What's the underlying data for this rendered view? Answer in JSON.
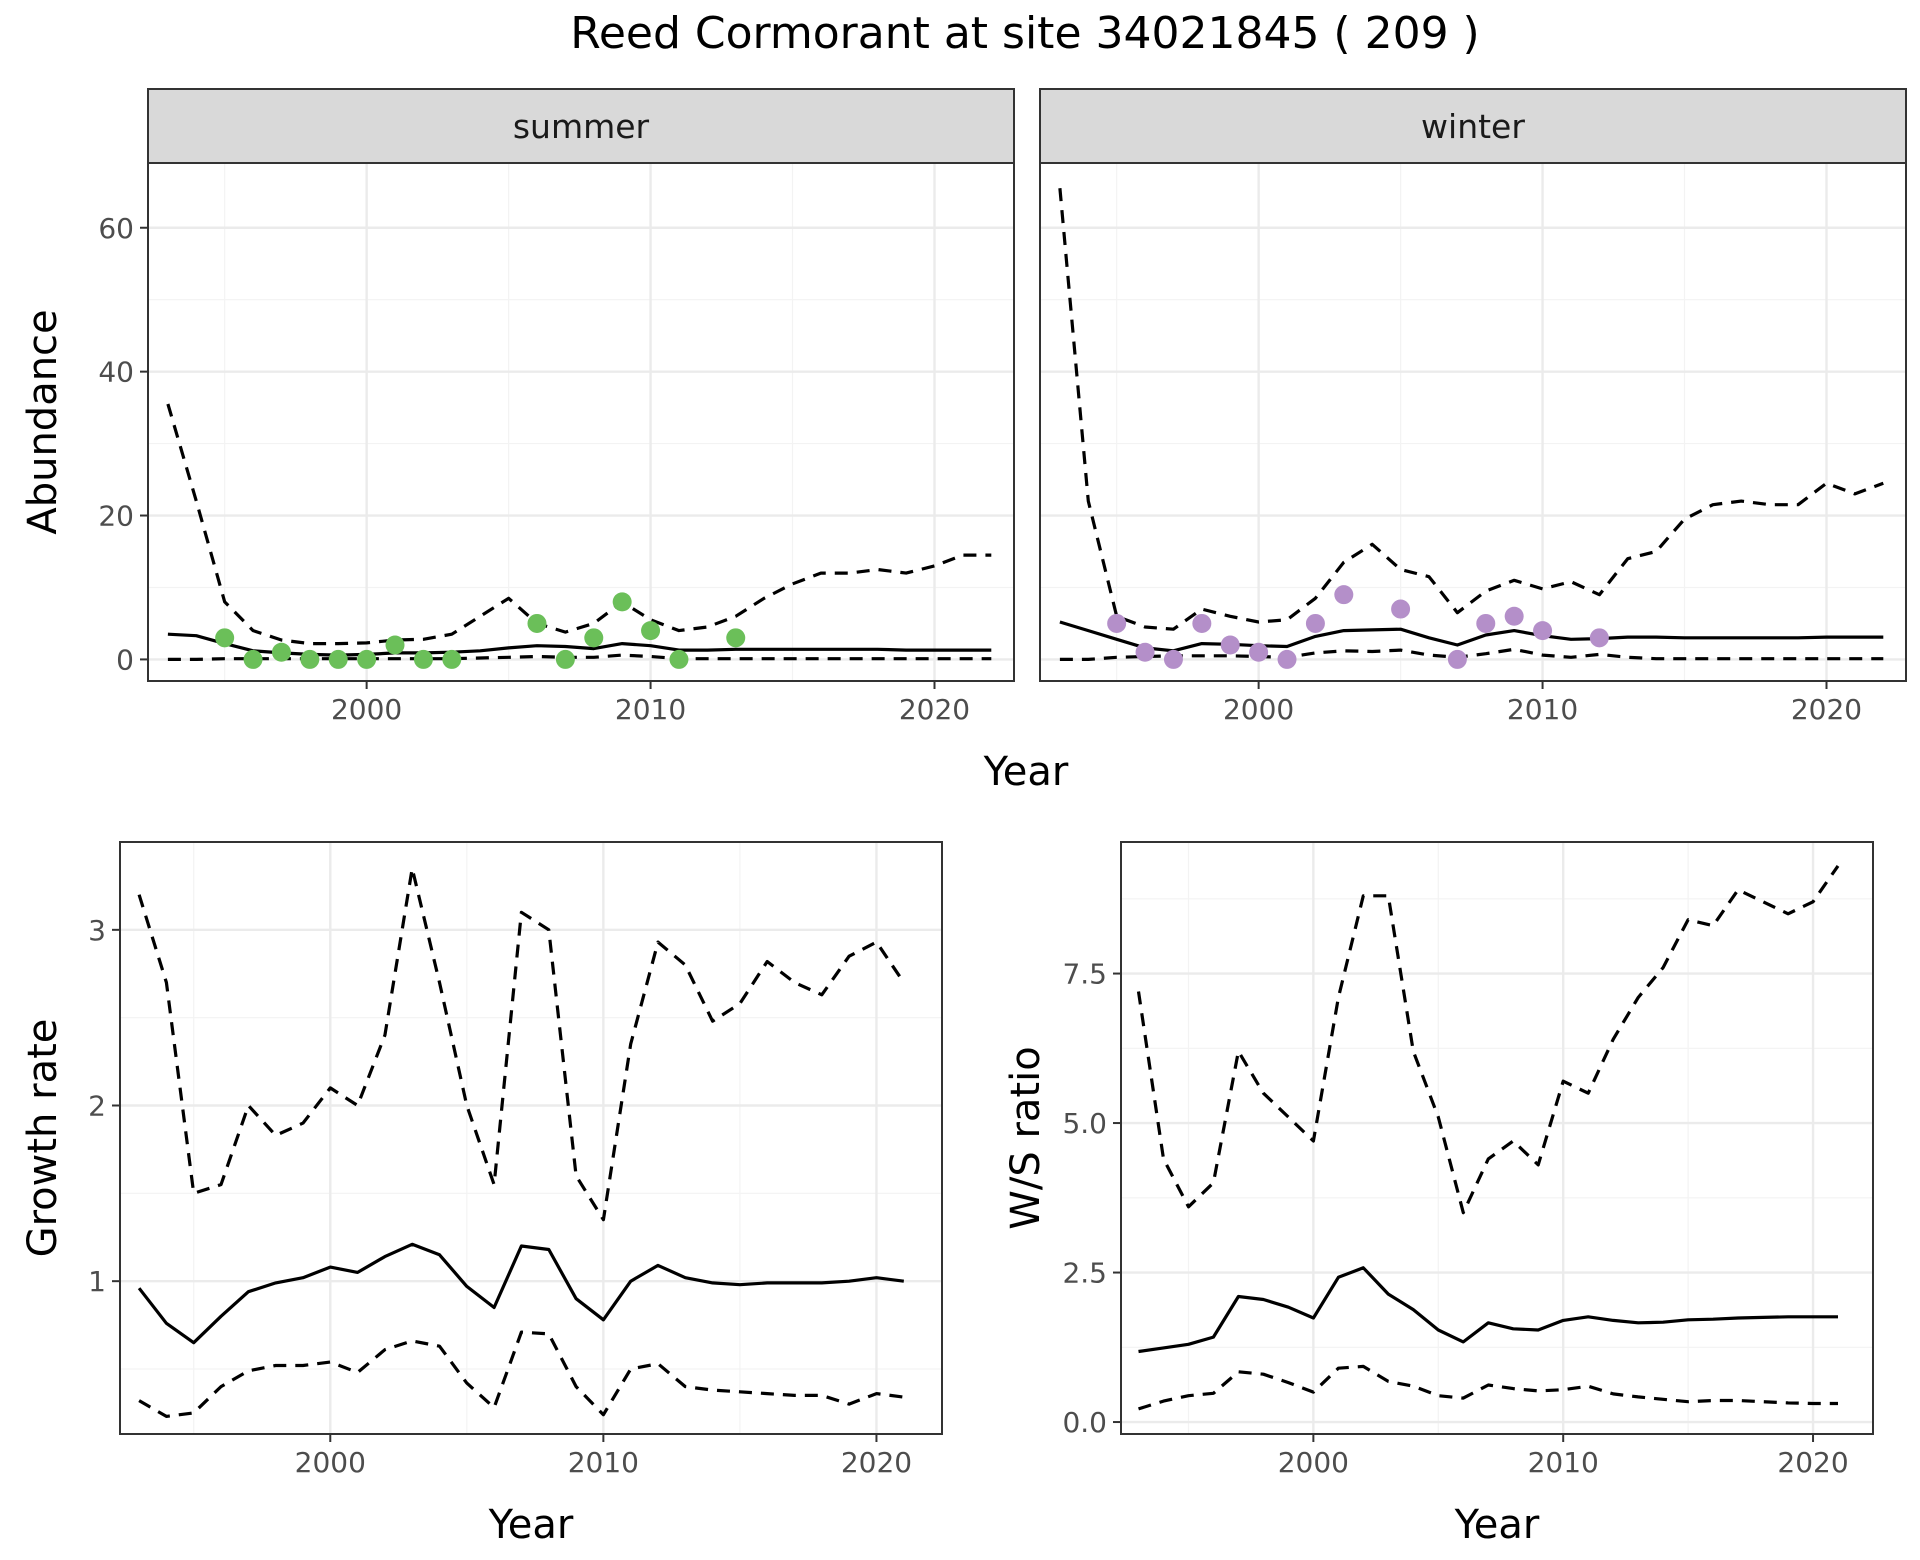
{
  "figure": {
    "title": "Reed Cormorant at site 34021845 ( 209 )"
  },
  "chart_data": [
    {
      "type": "line",
      "facet": "summer",
      "xlabel": "Year",
      "ylabel": "Abundance",
      "xlim": [
        1992.3,
        2022.8
      ],
      "ylim": [
        -3,
        69
      ],
      "x_ticks": [
        2000,
        2010,
        2020
      ],
      "y_ticks": [
        0,
        20,
        40,
        60
      ],
      "point_color": "#6bbf59",
      "x": [
        1993,
        1994,
        1995,
        1996,
        1997,
        1998,
        1999,
        2000,
        2001,
        2002,
        2003,
        2004,
        2005,
        2006,
        2007,
        2008,
        2009,
        2010,
        2011,
        2012,
        2013,
        2014,
        2015,
        2016,
        2017,
        2018,
        2019,
        2020,
        2021,
        2022
      ],
      "estimate": [
        3.5,
        3.3,
        2.2,
        1.2,
        0.9,
        0.7,
        0.6,
        0.7,
        0.9,
        0.9,
        1.0,
        1.2,
        1.6,
        1.9,
        1.8,
        1.5,
        2.2,
        1.9,
        1.3,
        1.3,
        1.4,
        1.4,
        1.4,
        1.4,
        1.4,
        1.4,
        1.3,
        1.3,
        1.3,
        1.3
      ],
      "upper": [
        35.5,
        22,
        8,
        4,
        2.7,
        2.2,
        2.2,
        2.3,
        2.7,
        2.8,
        3.5,
        6,
        8.5,
        5,
        3.8,
        5,
        8,
        5.5,
        4,
        4.5,
        6,
        8.5,
        10.5,
        12,
        12,
        12.5,
        12,
        13,
        14.5,
        14.5
      ],
      "lower": [
        0,
        0,
        0.1,
        0.1,
        0.1,
        0.1,
        0.1,
        0.1,
        0.1,
        0.1,
        0.1,
        0.2,
        0.3,
        0.4,
        0.3,
        0.3,
        0.6,
        0.4,
        0.1,
        0.1,
        0.1,
        0.1,
        0.1,
        0.1,
        0.1,
        0.1,
        0.1,
        0.1,
        0.1,
        0.1
      ],
      "counts": [
        {
          "x": 1995,
          "y": 3
        },
        {
          "x": 1996,
          "y": 0
        },
        {
          "x": 1997,
          "y": 1
        },
        {
          "x": 1998,
          "y": 0
        },
        {
          "x": 1999,
          "y": 0
        },
        {
          "x": 2000,
          "y": 0
        },
        {
          "x": 2001,
          "y": 2
        },
        {
          "x": 2002,
          "y": 0
        },
        {
          "x": 2003,
          "y": 0
        },
        {
          "x": 2006,
          "y": 5
        },
        {
          "x": 2007,
          "y": 0
        },
        {
          "x": 2008,
          "y": 3
        },
        {
          "x": 2009,
          "y": 8
        },
        {
          "x": 2010,
          "y": 4
        },
        {
          "x": 2011,
          "y": 0
        },
        {
          "x": 2013,
          "y": 3
        }
      ]
    },
    {
      "type": "line",
      "facet": "winter",
      "xlabel": "Year",
      "ylabel": "Abundance",
      "xlim": [
        1992.3,
        2022.8
      ],
      "ylim": [
        -3,
        69
      ],
      "x_ticks": [
        2000,
        2010,
        2020
      ],
      "y_ticks": [
        0,
        20,
        40,
        60
      ],
      "point_color": "#b48fc9",
      "x": [
        1993,
        1994,
        1995,
        1996,
        1997,
        1998,
        1999,
        2000,
        2001,
        2002,
        2003,
        2004,
        2005,
        2006,
        2007,
        2008,
        2009,
        2010,
        2011,
        2012,
        2013,
        2014,
        2015,
        2016,
        2017,
        2018,
        2019,
        2020,
        2021,
        2022
      ],
      "estimate": [
        5.2,
        4,
        2.8,
        1.6,
        1.2,
        2.2,
        2.1,
        1.9,
        1.8,
        3.2,
        4.0,
        4.1,
        4.2,
        3.0,
        2.0,
        3.4,
        4.0,
        3.3,
        2.8,
        2.9,
        3.1,
        3.1,
        3.0,
        3.0,
        3.0,
        3.0,
        3.0,
        3.1,
        3.1,
        3.1
      ],
      "upper": [
        65.5,
        22,
        6,
        4.5,
        4.2,
        7,
        6,
        5.2,
        5.5,
        8.5,
        13.5,
        16,
        12.5,
        11.5,
        6.5,
        9.5,
        11,
        9.8,
        10.8,
        9,
        14,
        15,
        19.5,
        21.5,
        22,
        21.5,
        21.5,
        24.5,
        23,
        24.5
      ],
      "lower": [
        0,
        0,
        0.3,
        0.4,
        0.5,
        0.5,
        0.5,
        0.4,
        0.3,
        0.9,
        1.2,
        1.1,
        1.3,
        0.6,
        0.3,
        0.8,
        1.4,
        0.6,
        0.3,
        0.7,
        0.3,
        0.1,
        0.1,
        0.1,
        0.1,
        0.1,
        0.1,
        0.1,
        0.1,
        0.1
      ],
      "counts": [
        {
          "x": 1995,
          "y": 5
        },
        {
          "x": 1996,
          "y": 1
        },
        {
          "x": 1997,
          "y": 0
        },
        {
          "x": 1998,
          "y": 5
        },
        {
          "x": 1999,
          "y": 2
        },
        {
          "x": 2000,
          "y": 1
        },
        {
          "x": 2001,
          "y": 0
        },
        {
          "x": 2002,
          "y": 5
        },
        {
          "x": 2003,
          "y": 9
        },
        {
          "x": 2005,
          "y": 7
        },
        {
          "x": 2007,
          "y": 0
        },
        {
          "x": 2008,
          "y": 5
        },
        {
          "x": 2009,
          "y": 6
        },
        {
          "x": 2010,
          "y": 4
        },
        {
          "x": 2012,
          "y": 3
        }
      ]
    },
    {
      "type": "line",
      "facet": "",
      "xlabel": "Year",
      "ylabel": "Growth rate",
      "xlim": [
        1992.3,
        2022.4
      ],
      "ylim": [
        0.13,
        3.5
      ],
      "x_ticks": [
        2000,
        2010,
        2020
      ],
      "y_ticks": [
        1,
        2,
        3
      ],
      "x": [
        1993,
        1994,
        1995,
        1996,
        1997,
        1998,
        1999,
        2000,
        2001,
        2002,
        2003,
        2004,
        2005,
        2006,
        2007,
        2008,
        2009,
        2010,
        2011,
        2012,
        2013,
        2014,
        2015,
        2016,
        2017,
        2018,
        2019,
        2020,
        2021
      ],
      "estimate": [
        0.96,
        0.76,
        0.65,
        0.8,
        0.94,
        0.99,
        1.02,
        1.08,
        1.05,
        1.14,
        1.21,
        1.15,
        0.97,
        0.85,
        1.2,
        1.18,
        0.9,
        0.78,
        1.0,
        1.09,
        1.02,
        0.99,
        0.98,
        0.99,
        0.99,
        0.99,
        1.0,
        1.02,
        1.0
      ],
      "upper": [
        3.2,
        2.7,
        1.5,
        1.55,
        2.0,
        1.83,
        1.9,
        2.1,
        2.0,
        2.4,
        3.35,
        2.7,
        2.0,
        1.55,
        3.1,
        3.0,
        1.6,
        1.35,
        2.35,
        2.93,
        2.8,
        2.48,
        2.58,
        2.82,
        2.7,
        2.63,
        2.85,
        2.93,
        2.7
      ],
      "lower": [
        0.32,
        0.23,
        0.25,
        0.4,
        0.49,
        0.52,
        0.52,
        0.54,
        0.48,
        0.61,
        0.66,
        0.63,
        0.42,
        0.28,
        0.71,
        0.7,
        0.4,
        0.24,
        0.5,
        0.53,
        0.4,
        0.38,
        0.37,
        0.36,
        0.35,
        0.35,
        0.3,
        0.36,
        0.34
      ]
    },
    {
      "type": "line",
      "facet": "",
      "xlabel": "Year",
      "ylabel": "W/S ratio",
      "xlim": [
        1992.3,
        2022.4
      ],
      "ylim": [
        -0.2,
        9.7
      ],
      "x_ticks": [
        2000,
        2010,
        2020
      ],
      "y_ticks": [
        0.0,
        2.5,
        5.0,
        7.5
      ],
      "y_tick_labels": [
        "0.0",
        "2.5",
        "5.0",
        "7.5"
      ],
      "x": [
        1993,
        1994,
        1995,
        1996,
        1997,
        1998,
        1999,
        2000,
        2001,
        2002,
        2003,
        2004,
        2005,
        2006,
        2007,
        2008,
        2009,
        2010,
        2011,
        2012,
        2013,
        2014,
        2015,
        2016,
        2017,
        2018,
        2019,
        2020,
        2021
      ],
      "estimate": [
        1.18,
        1.24,
        1.3,
        1.42,
        2.1,
        2.05,
        1.92,
        1.74,
        2.42,
        2.58,
        2.14,
        1.88,
        1.54,
        1.34,
        1.66,
        1.56,
        1.54,
        1.7,
        1.76,
        1.7,
        1.66,
        1.67,
        1.71,
        1.72,
        1.74,
        1.75,
        1.76,
        1.76,
        1.76
      ],
      "upper": [
        7.2,
        4.4,
        3.6,
        4.0,
        6.2,
        5.5,
        5.1,
        4.7,
        7.1,
        8.8,
        8.8,
        6.2,
        5.1,
        3.5,
        4.4,
        4.7,
        4.3,
        5.7,
        5.5,
        6.4,
        7.1,
        7.6,
        8.4,
        8.3,
        8.9,
        8.7,
        8.5,
        8.7,
        9.3
      ],
      "lower": [
        0.22,
        0.35,
        0.44,
        0.48,
        0.84,
        0.8,
        0.66,
        0.5,
        0.9,
        0.93,
        0.68,
        0.6,
        0.44,
        0.4,
        0.62,
        0.56,
        0.52,
        0.54,
        0.6,
        0.47,
        0.42,
        0.38,
        0.34,
        0.36,
        0.36,
        0.34,
        0.32,
        0.31,
        0.31
      ]
    }
  ]
}
